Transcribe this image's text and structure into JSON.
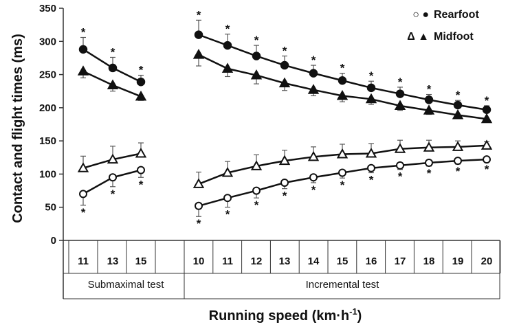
{
  "chart_data": {
    "type": "line",
    "ylabel": "Contact and flight times (ms)",
    "xlabel_main": "Running speed (km·h",
    "xlabel_sup": "-1",
    "xlabel_close": ")",
    "ylim": [
      0,
      350
    ],
    "yticks": [
      "0",
      "50",
      "100",
      "150",
      "200",
      "250",
      "300",
      "350"
    ],
    "grid": false,
    "legend": [
      {
        "symbols": "○ ●",
        "label": "Rearfoot"
      },
      {
        "symbols": "Δ ▲",
        "label": "Midfoot"
      }
    ],
    "groups": [
      {
        "label": "Submaximal test",
        "categories": [
          "11",
          "13",
          "15"
        ]
      },
      {
        "label": "Incremental test",
        "categories": [
          "10",
          "11",
          "12",
          "13",
          "14",
          "15",
          "16",
          "17",
          "18",
          "19",
          "20"
        ]
      }
    ],
    "series": [
      {
        "name": "Rearfoot contact",
        "marker": "filled-circle",
        "submax": [
          288,
          260,
          239
        ],
        "incremental": [
          310,
          294,
          278,
          264,
          252,
          241,
          230,
          221,
          212,
          204,
          197
        ],
        "err_sub": [
          18,
          16,
          10
        ],
        "err_inc": [
          22,
          17,
          16,
          14,
          12,
          11,
          10,
          10,
          8,
          7,
          6
        ],
        "err_dir": "up",
        "sig_sub": [
          true,
          true,
          true
        ],
        "sig_inc": [
          true,
          true,
          true,
          true,
          true,
          true,
          true,
          true,
          true,
          true,
          true
        ]
      },
      {
        "name": "Midfoot contact",
        "marker": "filled-triangle",
        "submax": [
          255,
          234,
          217
        ],
        "incremental": [
          280,
          259,
          249,
          237,
          227,
          218,
          213,
          203,
          196,
          189,
          183
        ],
        "err_sub": [
          10,
          9,
          6
        ],
        "err_inc": [
          17,
          12,
          13,
          11,
          9,
          9,
          8,
          7,
          6,
          5,
          4
        ],
        "err_dir": "down",
        "sig_sub": [
          false,
          false,
          false
        ],
        "sig_inc": [
          false,
          false,
          false,
          false,
          false,
          false,
          false,
          false,
          false,
          false,
          false
        ]
      },
      {
        "name": "Midfoot flight",
        "marker": "open-triangle",
        "submax": [
          109,
          122,
          131
        ],
        "incremental": [
          85,
          102,
          112,
          120,
          126,
          130,
          131,
          138,
          140,
          141,
          143
        ],
        "err_sub": [
          18,
          20,
          16
        ],
        "err_inc": [
          18,
          17,
          17,
          16,
          15,
          15,
          15,
          13,
          11,
          9,
          6
        ],
        "err_dir": "up",
        "sig_sub": [
          false,
          false,
          false
        ],
        "sig_inc": [
          false,
          false,
          false,
          false,
          false,
          false,
          false,
          false,
          false,
          false,
          false
        ]
      },
      {
        "name": "Rearfoot flight",
        "marker": "open-circle",
        "submax": [
          70,
          95,
          106
        ],
        "incremental": [
          52,
          64,
          75,
          87,
          95,
          102,
          109,
          113,
          117,
          120,
          122
        ],
        "err_sub": [
          17,
          14,
          11
        ],
        "err_inc": [
          16,
          14,
          11,
          9,
          8,
          8,
          7,
          6,
          5,
          5,
          4
        ],
        "err_dir": "down",
        "sig_sub": [
          true,
          true,
          true
        ],
        "sig_inc": [
          true,
          true,
          true,
          true,
          true,
          true,
          true,
          true,
          true,
          true,
          true
        ]
      }
    ]
  }
}
